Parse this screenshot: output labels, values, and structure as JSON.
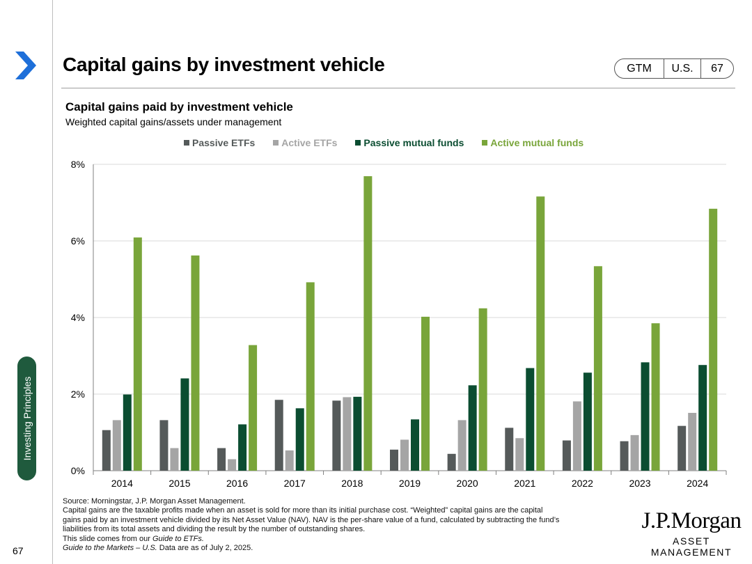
{
  "slide": {
    "title": "Capital gains by investment vehicle",
    "badge": {
      "left": "GTM",
      "middle": "U.S.",
      "right": "67"
    },
    "side_tab": "Investing Principles",
    "page_number": "67"
  },
  "colors": {
    "passive_etfs": "#555a5a",
    "active_etfs": "#a5a5a5",
    "passive_mutual_funds": "#0b4d31",
    "active_mutual_funds": "#79a53a",
    "brand_green": "#1f5a3d"
  },
  "chart_data": {
    "type": "bar",
    "title": "Capital gains paid by investment vehicle",
    "subtitle": "Weighted capital gains/assets under management",
    "xlabel": "",
    "ylabel": "",
    "ylim": [
      0,
      8
    ],
    "yticks": [
      0,
      2,
      4,
      6,
      8
    ],
    "ytick_labels": [
      "0%",
      "2%",
      "4%",
      "6%",
      "8%"
    ],
    "grid": true,
    "legend_position": "top",
    "categories": [
      "2014",
      "2015",
      "2016",
      "2017",
      "2018",
      "2019",
      "2020",
      "2021",
      "2022",
      "2023",
      "2024"
    ],
    "series": [
      {
        "name": "Passive ETFs",
        "color_key": "passive_etfs",
        "values": [
          1.06,
          1.32,
          0.59,
          1.85,
          1.83,
          0.55,
          0.44,
          1.12,
          0.79,
          0.77,
          1.17
        ]
      },
      {
        "name": "Active ETFs",
        "color_key": "active_etfs",
        "values": [
          1.32,
          0.59,
          0.3,
          0.53,
          1.92,
          0.81,
          1.32,
          0.85,
          1.81,
          0.93,
          1.51
        ]
      },
      {
        "name": "Passive mutual funds",
        "color_key": "passive_mutual_funds",
        "values": [
          1.99,
          2.41,
          1.21,
          1.63,
          1.93,
          1.34,
          2.23,
          2.68,
          2.56,
          2.83,
          2.76
        ]
      },
      {
        "name": "Active mutual funds",
        "color_key": "active_mutual_funds",
        "values": [
          6.09,
          5.62,
          3.28,
          4.92,
          7.69,
          4.02,
          4.24,
          7.16,
          5.34,
          3.85,
          6.84
        ]
      }
    ]
  },
  "footnotes": [
    "Source: Morningstar, J.P. Morgan Asset Management.",
    "Capital gains are the taxable profits made when an asset is sold for more than its initial purchase cost. “Weighted” capital gains are the capital",
    "gains paid by an investment vehicle divided by its Net Asset Value (NAV). NAV is the per-share value of a fund, calculated by subtracting the fund’s",
    "liabilities from its total assets and dividing the result by the number of outstanding shares."
  ],
  "footnote_guide": {
    "prefix": "This slide comes from our ",
    "italic": "Guide to ETFs."
  },
  "footnote_gtm": {
    "italic": "Guide to the Markets – U.S.",
    "suffix": " Data are as of July 2, 2025."
  },
  "logo": {
    "name": "J.P.Morgan",
    "sub": "ASSET MANAGEMENT"
  }
}
